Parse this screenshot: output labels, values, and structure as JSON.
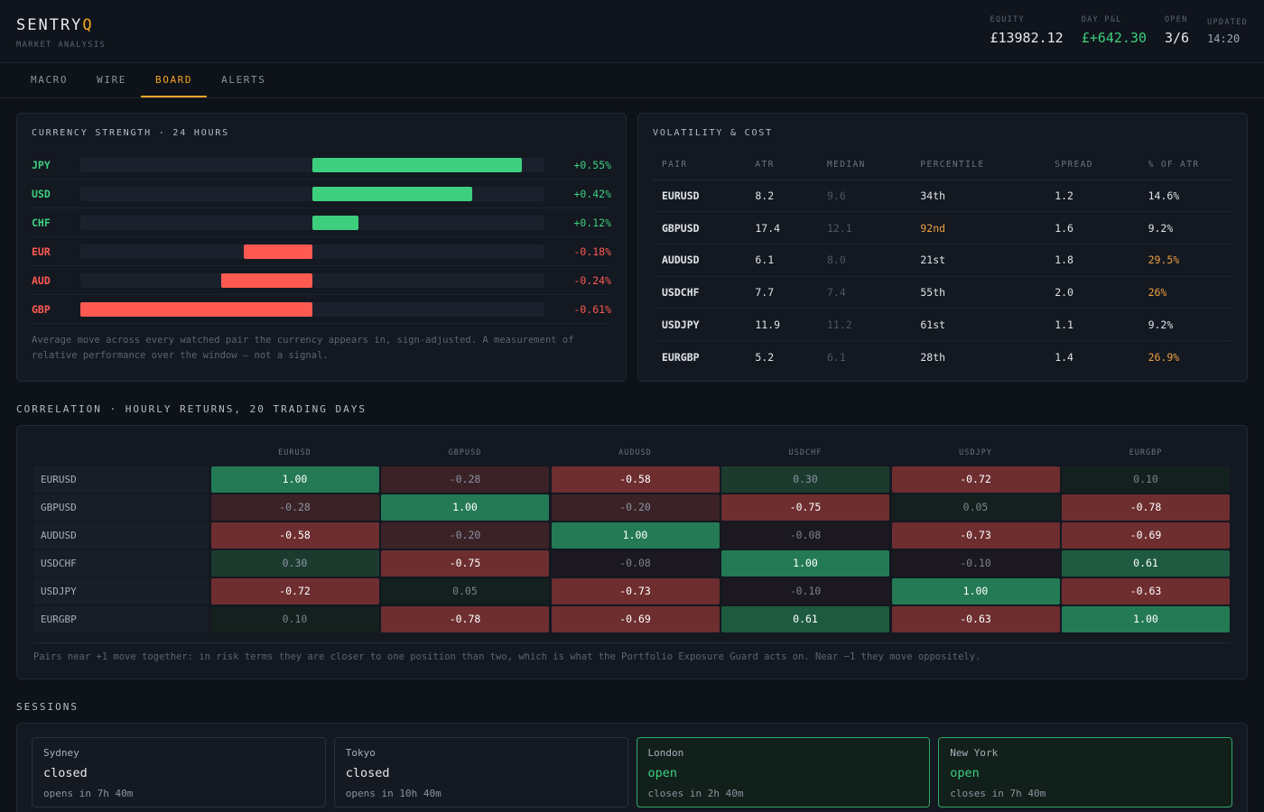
{
  "brand": {
    "name": "SENTRY",
    "accent": "Q",
    "subtitle": "MARKET ANALYSIS"
  },
  "stats": [
    {
      "label": "EQUITY",
      "value": "£13982.12",
      "tone": "neutral"
    },
    {
      "label": "DAY P&L",
      "value": "£+642.30",
      "tone": "pos"
    },
    {
      "label": "OPEN",
      "value": "3/6",
      "tone": "neutral"
    },
    {
      "label": "UPDATED",
      "value": "14:20",
      "tone": "muted"
    }
  ],
  "tabs": [
    {
      "label": "MACRO",
      "active": false
    },
    {
      "label": "WIRE",
      "active": false
    },
    {
      "label": "BOARD",
      "active": true
    },
    {
      "label": "ALERTS",
      "active": false
    }
  ],
  "strength": {
    "title": "CURRENCY STRENGTH · 24 HOURS",
    "max_abs": 0.61,
    "rows": [
      {
        "ccy": "JPY",
        "value": 0.55,
        "label": "+0.55%"
      },
      {
        "ccy": "USD",
        "value": 0.42,
        "label": "+0.42%"
      },
      {
        "ccy": "CHF",
        "value": 0.12,
        "label": "+0.12%"
      },
      {
        "ccy": "EUR",
        "value": -0.18,
        "label": "-0.18%"
      },
      {
        "ccy": "AUD",
        "value": -0.24,
        "label": "-0.24%"
      },
      {
        "ccy": "GBP",
        "value": -0.61,
        "label": "-0.61%"
      }
    ],
    "note": "Average move across every watched pair the currency appears in, sign-adjusted. A measurement of relative performance over the window — not a signal."
  },
  "volatility": {
    "title": "VOLATILITY & COST",
    "columns": [
      "PAIR",
      "ATR",
      "MEDIAN",
      "PERCENTILE",
      "SPREAD",
      "% OF ATR"
    ],
    "rows": [
      {
        "pair": "EURUSD",
        "atr": "8.2",
        "median": "9.6",
        "percentile": "34th",
        "pct_warn": false,
        "spread": "1.2",
        "of_atr": "14.6%",
        "atr_warn": false
      },
      {
        "pair": "GBPUSD",
        "atr": "17.4",
        "median": "12.1",
        "percentile": "92nd",
        "pct_warn": true,
        "spread": "1.6",
        "of_atr": "9.2%",
        "atr_warn": false
      },
      {
        "pair": "AUDUSD",
        "atr": "6.1",
        "median": "8.0",
        "percentile": "21st",
        "pct_warn": false,
        "spread": "1.8",
        "of_atr": "29.5%",
        "atr_warn": true
      },
      {
        "pair": "USDCHF",
        "atr": "7.7",
        "median": "7.4",
        "percentile": "55th",
        "pct_warn": false,
        "spread": "2.0",
        "of_atr": "26%",
        "atr_warn": true
      },
      {
        "pair": "USDJPY",
        "atr": "11.9",
        "median": "11.2",
        "percentile": "61st",
        "pct_warn": false,
        "spread": "1.1",
        "of_atr": "9.2%",
        "atr_warn": false
      },
      {
        "pair": "EURGBP",
        "atr": "5.2",
        "median": "6.1",
        "percentile": "28th",
        "pct_warn": false,
        "spread": "1.4",
        "of_atr": "26.9%",
        "atr_warn": true
      }
    ]
  },
  "correlation": {
    "title": "CORRELATION · HOURLY RETURNS, 20 TRADING DAYS",
    "pairs": [
      "EURUSD",
      "GBPUSD",
      "AUDUSD",
      "USDCHF",
      "USDJPY",
      "EURGBP"
    ],
    "matrix": [
      [
        "1.00",
        "-0.28",
        "-0.58",
        "0.30",
        "-0.72",
        "0.10"
      ],
      [
        "-0.28",
        "1.00",
        "-0.20",
        "-0.75",
        "0.05",
        "-0.78"
      ],
      [
        "-0.58",
        "-0.20",
        "1.00",
        "-0.08",
        "-0.73",
        "-0.69"
      ],
      [
        "0.30",
        "-0.75",
        "-0.08",
        "1.00",
        "-0.10",
        "0.61"
      ],
      [
        "-0.72",
        "0.05",
        "-0.73",
        "-0.10",
        "1.00",
        "-0.63"
      ],
      [
        "0.10",
        "-0.78",
        "-0.69",
        "0.61",
        "-0.63",
        "1.00"
      ]
    ],
    "note": "Pairs near +1 move together: in risk terms they are closer to one position than two, which is what the Portfolio Exposure Guard acts on. Near −1 they move oppositely."
  },
  "sessions": {
    "title": "SESSIONS",
    "items": [
      {
        "city": "Sydney",
        "state": "closed",
        "until": "opens in 7h 40m",
        "open": false
      },
      {
        "city": "Tokyo",
        "state": "closed",
        "until": "opens in 10h 40m",
        "open": false
      },
      {
        "city": "London",
        "state": "open",
        "until": "closes in 2h 40m",
        "open": true
      },
      {
        "city": "New York",
        "state": "open",
        "until": "closes in 7h 40m",
        "open": true
      }
    ]
  },
  "colors": {
    "accent": "#f5a623",
    "positive": "#3ecf7e",
    "negative": "#ff5a52",
    "warning": "#f0a040"
  }
}
